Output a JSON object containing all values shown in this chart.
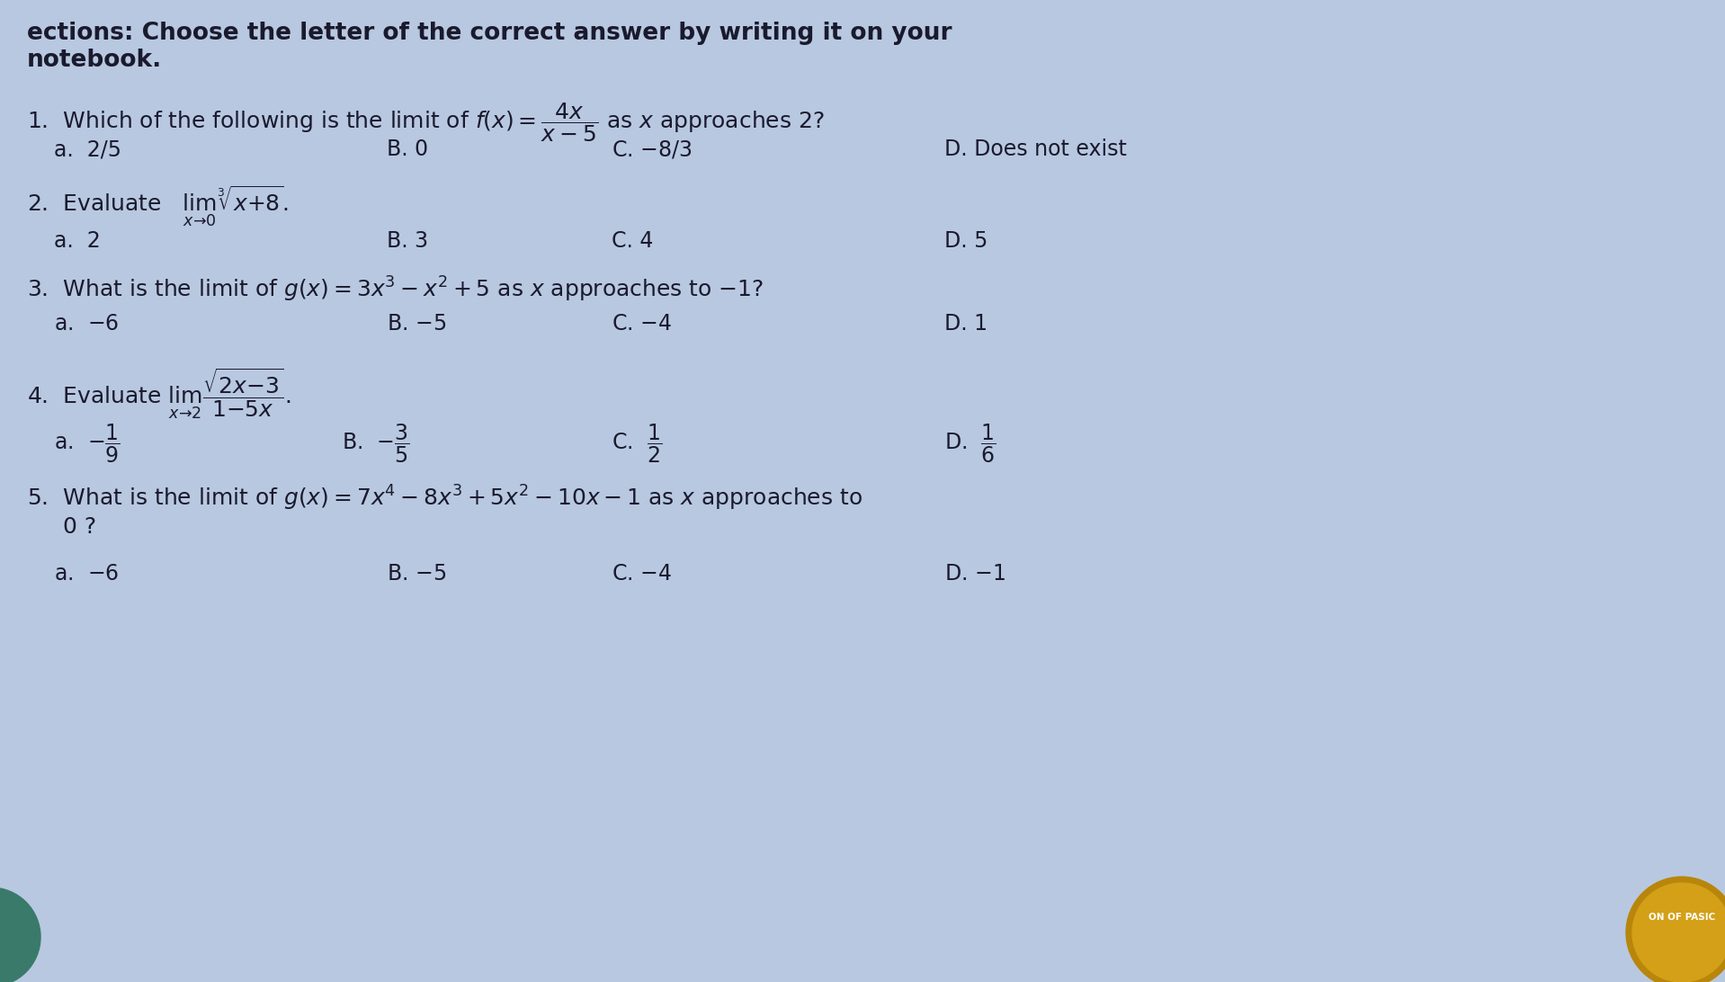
{
  "bg_color": "#b8c8e0",
  "text_color": "#1a1a2e",
  "title_line1": "ections: Choose the letter of the correct answer by writing it on your",
  "title_line2": "notebook.",
  "q1_main": "1.  Which of the following is the limit of $f(x) = \\dfrac{4x}{x-5}$ as $x$ approaches 2?",
  "q1_a": "a.  2/5",
  "q1_b": "B. 0",
  "q1_c": "C. $-8/3$",
  "q1_d": "D. Does not exist",
  "q2_main": "2.  Evaluate   $\\lim_{x \\to 0} \\sqrt[3]{x+8}$.",
  "q2_a": "a.  2",
  "q2_b": "B. 3",
  "q2_c": "C. 4",
  "q2_d": "D. 5",
  "q3_main": "3.  What is the limit of $g(x) = 3x^3 - x^2 + 5$ as $x$ approaches to $-1$?",
  "q3_a": "a.  $-6$",
  "q3_b": "B. $-5$",
  "q3_c": "C. $-4$",
  "q3_d": "D. 1",
  "q4_main": "4.  Evaluate $\\lim_{x \\to 2} \\dfrac{\\sqrt{2x-3}}{1-5x}$.",
  "q4_a": "a.  $-\\dfrac{1}{9}$",
  "q4_b": "B.  $-\\dfrac{3}{5}$",
  "q4_c": "C.  $\\dfrac{1}{2}$",
  "q4_d": "D.  $\\dfrac{1}{6}$",
  "q5_main": "5.  What is the limit of $g(x) = 7x^4 - 8x^3 + 5x^2 - 10x - 1$ as $x$ approaches to",
  "q5_main2": "     0 ?",
  "q5_a": "a.  $-6$",
  "q5_b": "B. $-5$",
  "q5_c": "C. $-4$",
  "q5_d": "D. $-1$",
  "fontsize_title": 19,
  "fontsize_question": 18,
  "fontsize_choices": 17,
  "stamp_color": "#c8a020"
}
